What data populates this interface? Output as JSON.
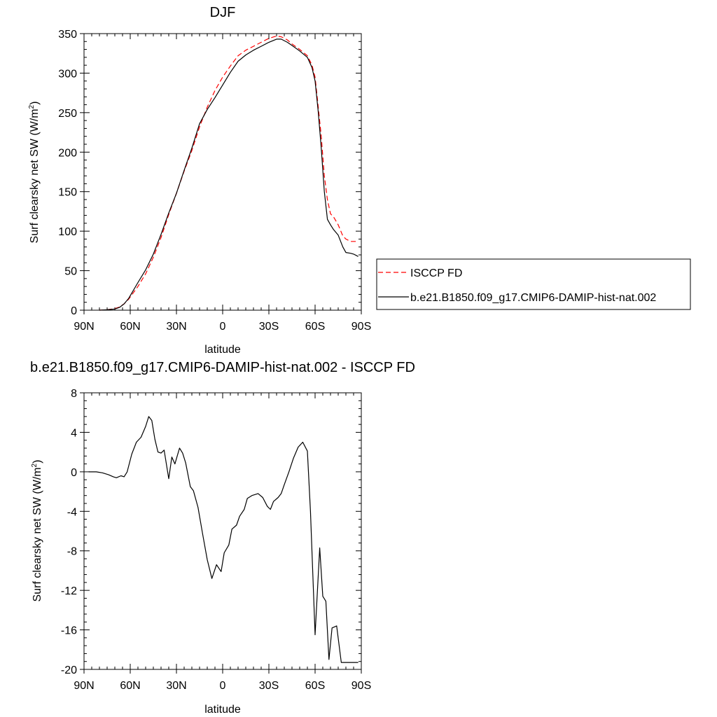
{
  "chart_data": [
    {
      "type": "line",
      "title": "DJF",
      "xlabel": "latitude",
      "ylabel": "Surf clearsky net SW (W/m",
      "ylabel_sup": "2",
      "ylabel_close": ")",
      "xlim": [
        -90,
        90
      ],
      "ylim": [
        0,
        350
      ],
      "xticks": [
        -90,
        -60,
        -30,
        0,
        30,
        60,
        90
      ],
      "xtick_labels": [
        "90N",
        "60N",
        "30N",
        "0",
        "30S",
        "60S",
        "90S"
      ],
      "yticks": [
        0,
        50,
        100,
        150,
        200,
        250,
        300,
        350
      ],
      "ytick_labels": [
        "0",
        "50",
        "100",
        "150",
        "200",
        "250",
        "300",
        "350"
      ],
      "legend": "right",
      "series": [
        {
          "name": "ISCCP FD",
          "color": "#ff0000",
          "dash": "dashed",
          "x": [
            -80,
            -75,
            -70,
            -67,
            -64,
            -61,
            -58,
            -55,
            -50,
            -45,
            -40,
            -35,
            -30,
            -25,
            -20,
            -15,
            -10,
            -5,
            0,
            5,
            10,
            15,
            20,
            25,
            30,
            35,
            38,
            42,
            45,
            50,
            55,
            58,
            60,
            62,
            64,
            66,
            68,
            70,
            72,
            75,
            78,
            80,
            83,
            85,
            88
          ],
          "y": [
            0,
            0.5,
            2,
            4,
            8,
            14,
            22,
            30,
            46,
            67,
            92,
            121,
            148,
            176,
            202,
            232,
            257,
            278,
            295,
            309,
            322,
            329,
            334,
            339,
            344,
            347,
            346,
            342,
            337,
            330,
            322,
            310,
            295,
            258,
            220,
            170,
            140,
            122,
            118,
            108,
            94,
            90,
            87,
            87,
            87
          ]
        },
        {
          "name": "b.e21.B1850.f09_g17.CMIP6-DAMIP-hist-nat.002",
          "color": "#000000",
          "dash": "solid",
          "x": [
            -80,
            -75,
            -70,
            -67,
            -64,
            -61,
            -58,
            -55,
            -50,
            -45,
            -40,
            -35,
            -30,
            -25,
            -20,
            -15,
            -10,
            -5,
            0,
            5,
            10,
            15,
            20,
            25,
            30,
            35,
            38,
            42,
            45,
            50,
            55,
            58,
            60,
            62,
            64,
            66,
            68,
            70,
            72,
            75,
            78,
            80,
            83,
            85,
            88
          ],
          "y": [
            0,
            0.5,
            1.5,
            3.5,
            8,
            15,
            25,
            35,
            51,
            71,
            96,
            123,
            148,
            177,
            205,
            236,
            254,
            269,
            285,
            301,
            315,
            323,
            329,
            334,
            339,
            343,
            343,
            339,
            335,
            328,
            320,
            307,
            290,
            252,
            205,
            150,
            115,
            108,
            102,
            95,
            80,
            73,
            72,
            71,
            68
          ]
        }
      ]
    },
    {
      "type": "line",
      "title": "b.e21.B1850.f09_g17.CMIP6-DAMIP-hist-nat.002 - ISCCP FD",
      "xlabel": "latitude",
      "ylabel": "Surf clearsky net SW (W/m",
      "ylabel_sup": "2",
      "ylabel_close": ")",
      "xlim": [
        -90,
        90
      ],
      "ylim": [
        -20,
        8
      ],
      "xticks": [
        -90,
        -60,
        -30,
        0,
        30,
        60,
        90
      ],
      "xtick_labels": [
        "90N",
        "60N",
        "30N",
        "0",
        "30S",
        "60S",
        "90S"
      ],
      "yticks": [
        -20,
        -16,
        -12,
        -8,
        -4,
        0,
        4,
        8
      ],
      "ytick_labels": [
        "-20",
        "-16",
        "-12",
        "-8",
        "-4",
        "0",
        "4",
        "8"
      ],
      "series": [
        {
          "color": "#000000",
          "dash": "solid",
          "x": [
            -87,
            -82,
            -78,
            -74,
            -71,
            -69,
            -66,
            -64,
            -62,
            -59,
            -56,
            -53,
            -50,
            -48,
            -46,
            -44,
            -42,
            -40,
            -38,
            -35,
            -33,
            -31,
            -28,
            -26,
            -24,
            -21,
            -19,
            -16,
            -13,
            -10,
            -7,
            -4,
            -1,
            1,
            4,
            6,
            9,
            11,
            14,
            16,
            19,
            21,
            23,
            26,
            29,
            31,
            33,
            36,
            38,
            40,
            43,
            46,
            49,
            52,
            55,
            57,
            60,
            63,
            65,
            67,
            69,
            71,
            74,
            77,
            80,
            82,
            84,
            86,
            88
          ],
          "y": [
            0,
            0,
            -0.1,
            -0.3,
            -0.5,
            -0.6,
            -0.4,
            -0.5,
            0,
            1.8,
            3.0,
            3.5,
            4.6,
            5.6,
            5.2,
            3.3,
            2.0,
            1.9,
            2.2,
            -0.7,
            1.5,
            0.8,
            2.4,
            1.9,
            0.9,
            -1.5,
            -1.9,
            -3.6,
            -6.3,
            -8.9,
            -10.8,
            -9.4,
            -10.1,
            -8.2,
            -7.4,
            -5.8,
            -5.4,
            -4.5,
            -3.8,
            -2.7,
            -2.4,
            -2.3,
            -2.2,
            -2.6,
            -3.5,
            -3.8,
            -3.0,
            -2.6,
            -2.2,
            -1.3,
            0,
            1.4,
            2.5,
            3.0,
            2.1,
            -4.0,
            -16.5,
            -7.7,
            -12.6,
            -13.1,
            -19.0,
            -15.8,
            -15.6,
            -19.3,
            -19.3,
            -19.3,
            -19.3,
            -19.3,
            -19.3
          ]
        }
      ]
    }
  ]
}
